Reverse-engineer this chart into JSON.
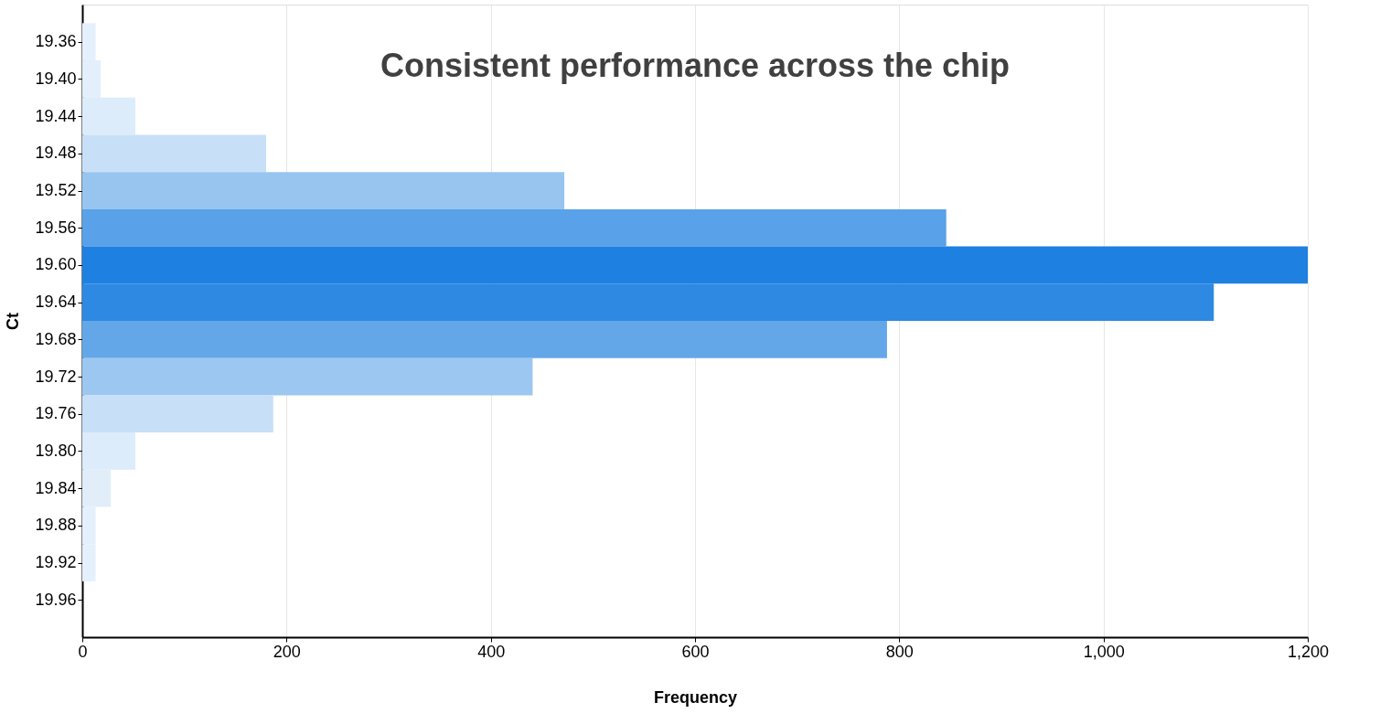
{
  "chart_data": {
    "type": "histogram",
    "orientation": "horizontal",
    "title": "Consistent performance across the chip",
    "xlabel": "Frequency",
    "ylabel": "Ct",
    "bins": [
      19.34,
      19.38,
      19.42,
      19.46,
      19.5,
      19.54,
      19.58,
      19.62,
      19.66,
      19.7,
      19.74,
      19.78,
      19.82,
      19.86,
      19.9,
      19.94
    ],
    "values": [
      13,
      18,
      52,
      180,
      472,
      846,
      1200,
      1108,
      788,
      441,
      187,
      52,
      28,
      13,
      13
    ],
    "colors": [
      "#e4f0fb",
      "#e3effb",
      "#ddecfa",
      "#c8e0f7",
      "#97c5f0",
      "#59a1e8",
      "#1e80e0",
      "#2d89e2",
      "#63a7e9",
      "#9cc7f1",
      "#c7dff7",
      "#ddecfa",
      "#e1eefa",
      "#e4f0fb",
      "#e4f0fb"
    ],
    "xlim": [
      0,
      1200
    ],
    "xticks": [
      0,
      200,
      400,
      600,
      800,
      {
        "value": 1000,
        "label": "1,000"
      },
      {
        "value": 1200,
        "label": "1,200"
      }
    ],
    "ylim": [
      20.0,
      19.32
    ],
    "yticks": [
      19.36,
      {
        "value": 19.4,
        "label": "19.40"
      },
      19.44,
      19.48,
      19.52,
      19.56,
      {
        "value": 19.6,
        "label": "19.60"
      },
      19.64,
      19.68,
      19.72,
      19.76,
      {
        "value": 19.8,
        "label": "19.80"
      },
      19.84,
      19.88,
      19.92,
      19.96
    ],
    "grid": "x"
  }
}
